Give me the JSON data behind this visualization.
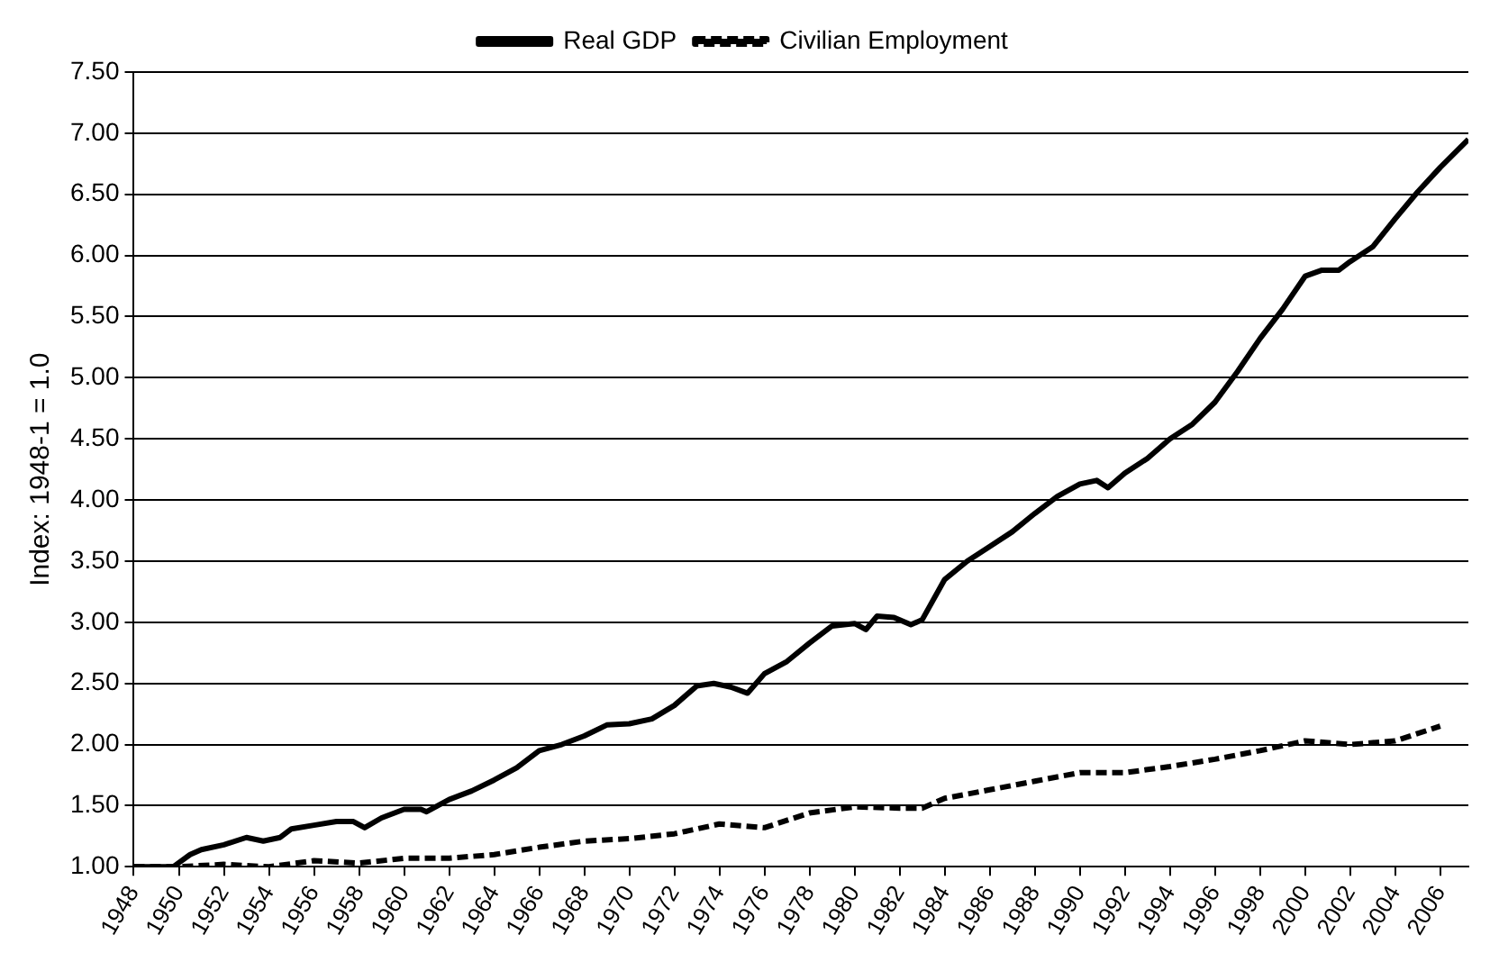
{
  "chart_data": {
    "type": "line",
    "ylabel": "Index: 1948-1 = 1.0",
    "xlim": [
      1948,
      2007.25
    ],
    "xticks": [
      1948,
      1950,
      1952,
      1954,
      1956,
      1958,
      1960,
      1962,
      1964,
      1966,
      1968,
      1970,
      1972,
      1974,
      1976,
      1978,
      1980,
      1982,
      1984,
      1986,
      1988,
      1990,
      1992,
      1994,
      1996,
      1998,
      2000,
      2002,
      2004,
      2006
    ],
    "ylim": [
      1,
      7.5
    ],
    "yticks": [
      {
        "value": 1,
        "label": "1.00"
      },
      {
        "value": 1.5,
        "label": "1.50"
      },
      {
        "value": 2,
        "label": "2.00"
      },
      {
        "value": 2.5,
        "label": "2.50"
      },
      {
        "value": 3,
        "label": "3.00"
      },
      {
        "value": 3.5,
        "label": "3.50"
      },
      {
        "value": 4,
        "label": "4.00"
      },
      {
        "value": 4.5,
        "label": "4.50"
      },
      {
        "value": 5,
        "label": "5.00"
      },
      {
        "value": 5.5,
        "label": "5.50"
      },
      {
        "value": 6,
        "label": "6.00"
      },
      {
        "value": 6.5,
        "label": "6.50"
      },
      {
        "value": 7,
        "label": "7.00"
      },
      {
        "value": 7.5,
        "label": "7.50"
      }
    ],
    "grid": "y",
    "legend": "top",
    "marker": "none",
    "series": [
      {
        "name": "Real GDP",
        "color": "#000000",
        "line_style": "solid",
        "x": [
          1948,
          1949,
          1949.75,
          1950.5,
          1951,
          1952,
          1953,
          1953.75,
          1954.5,
          1955,
          1956,
          1957,
          1957.75,
          1958.25,
          1959,
          1960,
          1960.75,
          1961,
          1962,
          1963,
          1964,
          1965,
          1966,
          1967,
          1968,
          1969,
          1970,
          1971,
          1972,
          1973,
          1973.75,
          1974.5,
          1975.25,
          1976,
          1977,
          1978,
          1979,
          1980,
          1980.5,
          1981,
          1981.75,
          1982.5,
          1983,
          1984,
          1985,
          1986,
          1987,
          1988,
          1989,
          1990,
          1990.75,
          1991.25,
          1992,
          1993,
          1994,
          1995,
          1996,
          1997,
          1998,
          1999,
          2000,
          2000.75,
          2001.5,
          2002,
          2003,
          2004,
          2005,
          2006,
          2007.25
        ],
        "values": [
          1.0,
          1.0,
          1.0,
          1.1,
          1.14,
          1.18,
          1.24,
          1.21,
          1.24,
          1.31,
          1.34,
          1.37,
          1.37,
          1.32,
          1.4,
          1.47,
          1.47,
          1.45,
          1.55,
          1.62,
          1.71,
          1.81,
          1.95,
          2.0,
          2.07,
          2.16,
          2.17,
          2.21,
          2.32,
          2.48,
          2.5,
          2.47,
          2.42,
          2.58,
          2.68,
          2.83,
          2.97,
          2.99,
          2.94,
          3.05,
          3.04,
          2.98,
          3.02,
          3.35,
          3.5,
          3.62,
          3.74,
          3.89,
          4.03,
          4.13,
          4.16,
          4.1,
          4.22,
          4.34,
          4.5,
          4.62,
          4.8,
          5.05,
          5.32,
          5.56,
          5.83,
          5.88,
          5.88,
          5.95,
          6.07,
          6.3,
          6.52,
          6.72,
          6.95
        ]
      },
      {
        "name": "Civilian Employment",
        "color": "#000000",
        "line_style": "dashed",
        "x": [
          1948,
          1950,
          1952,
          1954,
          1956,
          1958,
          1960,
          1962,
          1964,
          1966,
          1968,
          1970,
          1972,
          1974,
          1976,
          1978,
          1980,
          1982,
          1983,
          1984,
          1986,
          1988,
          1990,
          1992,
          1994,
          1996,
          1998,
          2000,
          2002,
          2004,
          2006
        ],
        "values": [
          1.0,
          1.0,
          1.02,
          1.0,
          1.05,
          1.03,
          1.07,
          1.07,
          1.1,
          1.16,
          1.21,
          1.23,
          1.27,
          1.35,
          1.32,
          1.44,
          1.49,
          1.48,
          1.48,
          1.56,
          1.63,
          1.7,
          1.77,
          1.77,
          1.82,
          1.88,
          1.95,
          2.03,
          2.0,
          2.03,
          2.15
        ]
      }
    ]
  }
}
